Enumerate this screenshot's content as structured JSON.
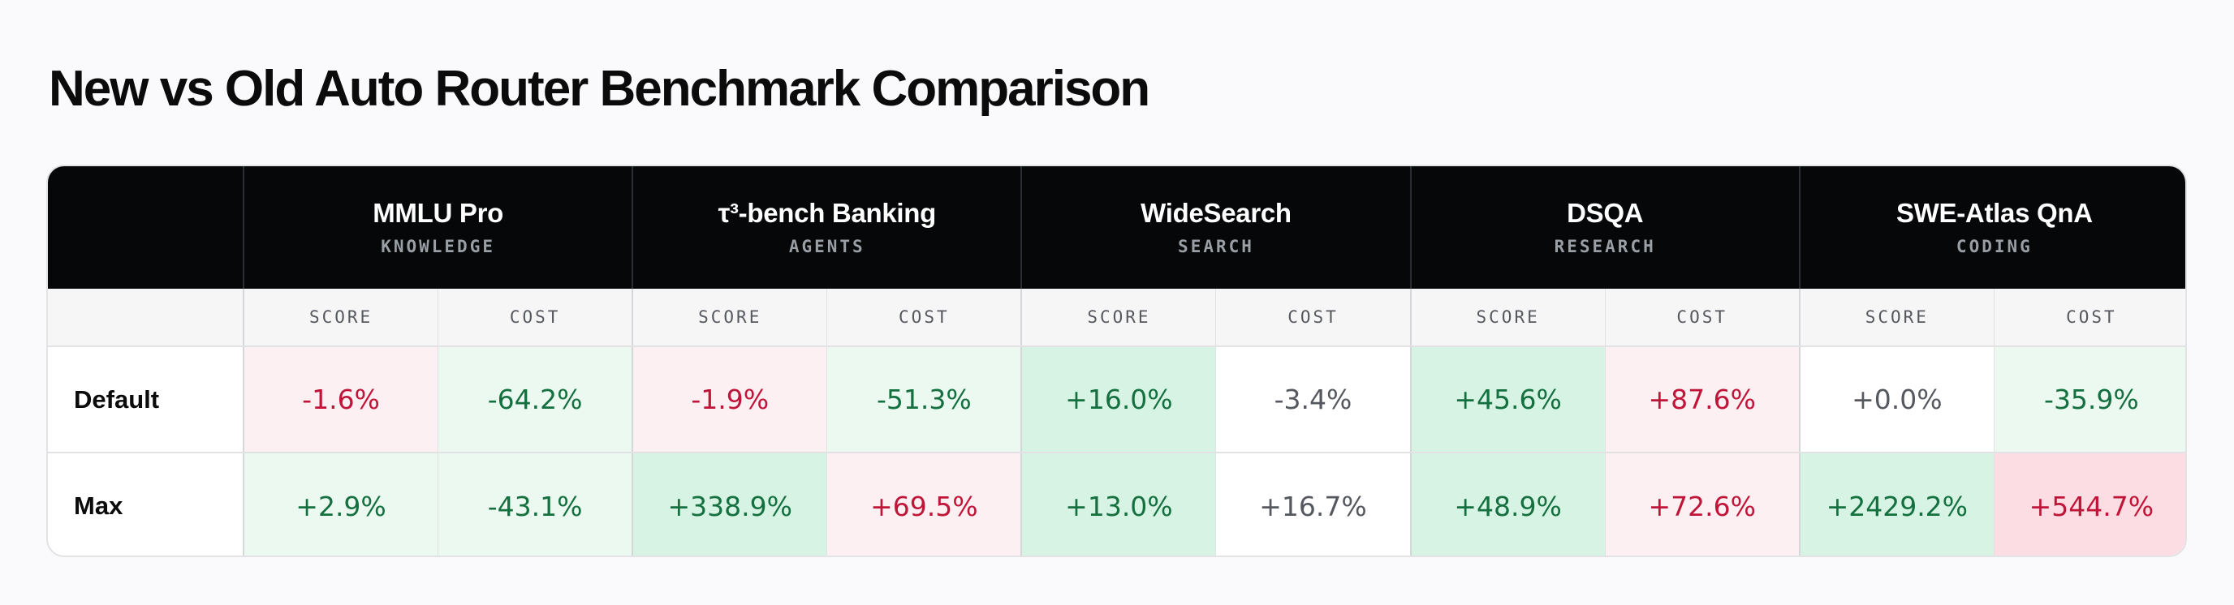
{
  "title": "New vs Old Auto Router Benchmark Comparison",
  "chart_data": {
    "type": "table",
    "benchmarks": [
      {
        "name": "MMLU Pro",
        "category": "KNOWLEDGE"
      },
      {
        "name": "τ³-bench Banking",
        "category": "AGENTS"
      },
      {
        "name": "WideSearch",
        "category": "SEARCH"
      },
      {
        "name": "DSQA",
        "category": "RESEARCH"
      },
      {
        "name": "SWE-Atlas QnA",
        "category": "CODING"
      }
    ],
    "subheaders": {
      "score": "SCORE",
      "cost": "COST"
    },
    "rows": [
      {
        "label": "Default",
        "cells": [
          {
            "text": "-1.6%",
            "value": -1.6,
            "tone": "neg",
            "fill": "neg-light"
          },
          {
            "text": "-64.2%",
            "value": -64.2,
            "tone": "pos",
            "fill": "pos-light"
          },
          {
            "text": "-1.9%",
            "value": -1.9,
            "tone": "neg",
            "fill": "neg-light"
          },
          {
            "text": "-51.3%",
            "value": -51.3,
            "tone": "pos",
            "fill": "pos-light"
          },
          {
            "text": "+16.0%",
            "value": 16.0,
            "tone": "pos",
            "fill": "pos-mid"
          },
          {
            "text": "-3.4%",
            "value": -3.4,
            "tone": "neu",
            "fill": "none"
          },
          {
            "text": "+45.6%",
            "value": 45.6,
            "tone": "pos",
            "fill": "pos-mid"
          },
          {
            "text": "+87.6%",
            "value": 87.6,
            "tone": "neg",
            "fill": "neg-light"
          },
          {
            "text": "+0.0%",
            "value": 0.0,
            "tone": "neu",
            "fill": "none"
          },
          {
            "text": "-35.9%",
            "value": -35.9,
            "tone": "pos",
            "fill": "pos-light"
          }
        ]
      },
      {
        "label": "Max",
        "cells": [
          {
            "text": "+2.9%",
            "value": 2.9,
            "tone": "pos",
            "fill": "pos-light"
          },
          {
            "text": "-43.1%",
            "value": -43.1,
            "tone": "pos",
            "fill": "pos-light"
          },
          {
            "text": "+338.9%",
            "value": 338.9,
            "tone": "pos",
            "fill": "pos-mid"
          },
          {
            "text": "+69.5%",
            "value": 69.5,
            "tone": "neg",
            "fill": "neg-light"
          },
          {
            "text": "+13.0%",
            "value": 13.0,
            "tone": "pos",
            "fill": "pos-mid"
          },
          {
            "text": "+16.7%",
            "value": 16.7,
            "tone": "neu",
            "fill": "none"
          },
          {
            "text": "+48.9%",
            "value": 48.9,
            "tone": "pos",
            "fill": "pos-mid"
          },
          {
            "text": "+72.6%",
            "value": 72.6,
            "tone": "neg",
            "fill": "neg-light"
          },
          {
            "text": "+2429.2%",
            "value": 2429.2,
            "tone": "pos",
            "fill": "pos-mid"
          },
          {
            "text": "+544.7%",
            "value": 544.7,
            "tone": "neg",
            "fill": "neg-mid"
          }
        ]
      }
    ]
  },
  "colors": {
    "header_bg": "#050708",
    "positive_text": "#14703f",
    "negative_text": "#c01538",
    "neutral_text": "#55585e"
  }
}
